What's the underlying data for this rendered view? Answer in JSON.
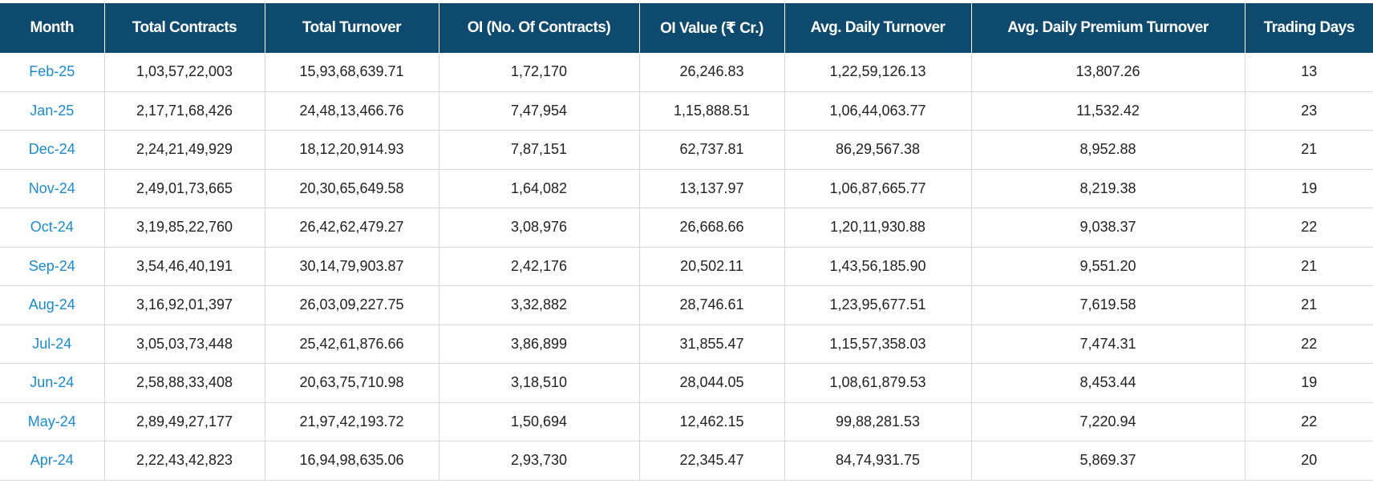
{
  "table": {
    "headers": [
      "Month",
      "Total Contracts",
      "Total Turnover",
      "OI (No. Of Contracts)",
      "OI Value (₹ Cr.)",
      "Avg. Daily Turnover",
      "Avg. Daily Premium Turnover",
      "Trading Days"
    ],
    "rows": [
      [
        "Feb-25",
        "1,03,57,22,003",
        "15,93,68,639.71",
        "1,72,170",
        "26,246.83",
        "1,22,59,126.13",
        "13,807.26",
        "13"
      ],
      [
        "Jan-25",
        "2,17,71,68,426",
        "24,48,13,466.76",
        "7,47,954",
        "1,15,888.51",
        "1,06,44,063.77",
        "11,532.42",
        "23"
      ],
      [
        "Dec-24",
        "2,24,21,49,929",
        "18,12,20,914.93",
        "7,87,151",
        "62,737.81",
        "86,29,567.38",
        "8,952.88",
        "21"
      ],
      [
        "Nov-24",
        "2,49,01,73,665",
        "20,30,65,649.58",
        "1,64,082",
        "13,137.97",
        "1,06,87,665.77",
        "8,219.38",
        "19"
      ],
      [
        "Oct-24",
        "3,19,85,22,760",
        "26,42,62,479.27",
        "3,08,976",
        "26,668.66",
        "1,20,11,930.88",
        "9,038.37",
        "22"
      ],
      [
        "Sep-24",
        "3,54,46,40,191",
        "30,14,79,903.87",
        "2,42,176",
        "20,502.11",
        "1,43,56,185.90",
        "9,551.20",
        "21"
      ],
      [
        "Aug-24",
        "3,16,92,01,397",
        "26,03,09,227.75",
        "3,32,882",
        "28,746.61",
        "1,23,95,677.51",
        "7,619.58",
        "21"
      ],
      [
        "Jul-24",
        "3,05,03,73,448",
        "25,42,61,876.66",
        "3,86,899",
        "31,855.47",
        "1,15,57,358.03",
        "7,474.31",
        "22"
      ],
      [
        "Jun-24",
        "2,58,88,33,408",
        "20,63,75,710.98",
        "3,18,510",
        "28,044.05",
        "1,08,61,879.53",
        "8,453.44",
        "19"
      ],
      [
        "May-24",
        "2,89,49,27,177",
        "21,97,42,193.72",
        "1,50,694",
        "12,462.15",
        "99,88,281.53",
        "7,220.94",
        "22"
      ],
      [
        "Apr-24",
        "2,22,43,42,823",
        "16,94,98,635.06",
        "2,93,730",
        "22,345.47",
        "84,74,931.75",
        "5,869.37",
        "20"
      ]
    ]
  },
  "colors": {
    "header_bg": "#0e4a6e",
    "header_text": "#ffffff",
    "link": "#1a8ad4",
    "grid": "#d9d9d9"
  }
}
